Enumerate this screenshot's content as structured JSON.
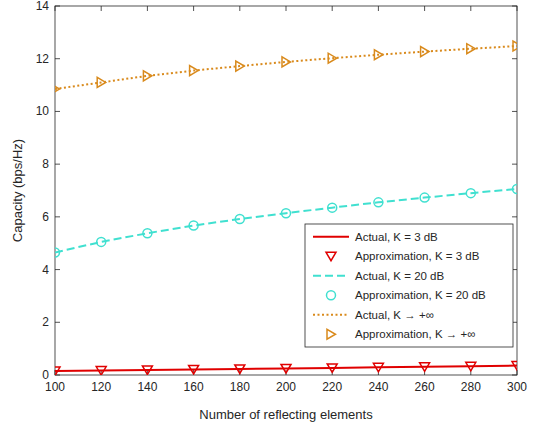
{
  "chart_data": {
    "type": "line",
    "x_label": "Number of reflecting elements",
    "y_label": "Capacity (bps/Hz)",
    "x": [
      100,
      120,
      140,
      160,
      180,
      200,
      220,
      240,
      260,
      280,
      300
    ],
    "xlim": [
      100,
      300
    ],
    "xticks": [
      100,
      120,
      140,
      160,
      180,
      200,
      220,
      240,
      260,
      280,
      300
    ],
    "ylim": [
      0,
      14
    ],
    "yticks": [
      0,
      2,
      4,
      6,
      8,
      10,
      12,
      14
    ],
    "grid": false,
    "legend": "lower right",
    "series": [
      {
        "name": "Actual, K = 3 dB",
        "color": "#e00000",
        "marker": "none",
        "line_style": "solid",
        "values": [
          0.15,
          0.17,
          0.19,
          0.21,
          0.23,
          0.25,
          0.27,
          0.29,
          0.31,
          0.33,
          0.36
        ]
      },
      {
        "name": "Approximation, K = 3 dB",
        "color": "#e00000",
        "marker": "triangle-down",
        "line_style": "none",
        "values": [
          0.15,
          0.17,
          0.19,
          0.21,
          0.23,
          0.25,
          0.27,
          0.29,
          0.31,
          0.33,
          0.36
        ]
      },
      {
        "name": "Actual, K = 20 dB",
        "color": "#40e0d0",
        "marker": "none",
        "line_style": "dashed",
        "values": [
          4.65,
          5.05,
          5.38,
          5.67,
          5.92,
          6.14,
          6.35,
          6.55,
          6.73,
          6.9,
          7.06
        ]
      },
      {
        "name": "Approximation, K = 20 dB",
        "color": "#40e0d0",
        "marker": "circle",
        "line_style": "none",
        "values": [
          4.65,
          5.05,
          5.38,
          5.67,
          5.92,
          6.14,
          6.35,
          6.55,
          6.73,
          6.9,
          7.06
        ]
      },
      {
        "name": "Actual, K → +∞",
        "color": "#d98a1c",
        "marker": "none",
        "line_style": "dotted",
        "values": [
          10.85,
          11.1,
          11.35,
          11.55,
          11.72,
          11.88,
          12.02,
          12.15,
          12.27,
          12.38,
          12.48
        ]
      },
      {
        "name": "Approximation, K → +∞",
        "color": "#d98a1c",
        "marker": "triangle-right",
        "line_style": "none",
        "values": [
          10.85,
          11.1,
          11.35,
          11.55,
          11.72,
          11.88,
          12.02,
          12.15,
          12.27,
          12.38,
          12.48
        ]
      }
    ]
  }
}
